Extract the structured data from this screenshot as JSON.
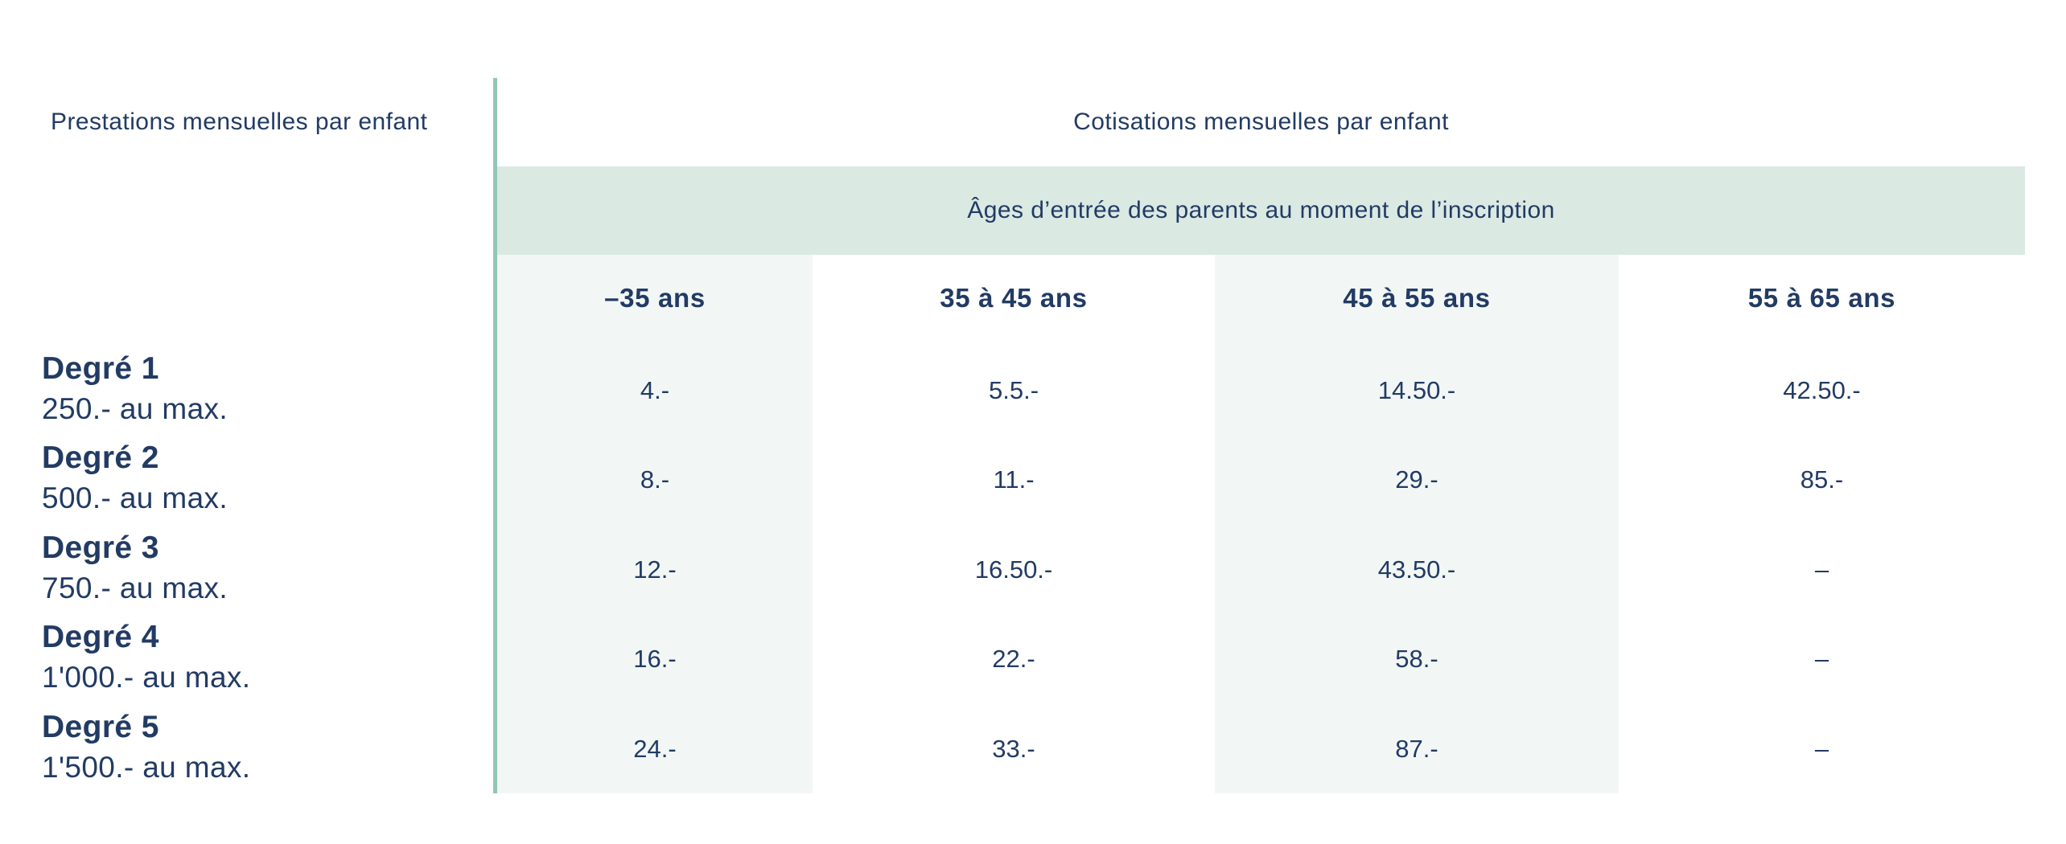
{
  "styles": {
    "page_bg": "#ffffff",
    "text_navy": "#223b64",
    "band_bg": "#dbe9e3",
    "column_tint_bg": "#f2f7f5",
    "divider_teal": "#92c5b8"
  },
  "chart_data": {
    "type": "table",
    "left_title": "Prestations mensuelles par enfant",
    "right_title": "Cotisations mensuelles par enfant",
    "age_header": "Âges d’entrée des parents au moment de l’inscription",
    "columns": [
      "–35 ans",
      "35 à 45 ans",
      "45 à 55 ans",
      "55 à 65 ans"
    ],
    "rows": [
      {
        "label": "Degré 1",
        "max": "250.- au max.",
        "values": [
          "4.-",
          "5.5.-",
          "14.50.-",
          "42.50.-"
        ]
      },
      {
        "label": "Degré 2",
        "max": "500.- au max.",
        "values": [
          "8.-",
          "11.-",
          "29.-",
          "85.-"
        ]
      },
      {
        "label": "Degré 3",
        "max": "750.- au max.",
        "values": [
          "12.-",
          "16.50.-",
          "43.50.-",
          "–"
        ]
      },
      {
        "label": "Degré 4",
        "max": "1'000.- au max.",
        "values": [
          "16.-",
          "22.-",
          "58.-",
          "–"
        ]
      },
      {
        "label": "Degré 5",
        "max": "1'500.- au max.",
        "values": [
          "24.-",
          "33.-",
          "87.-",
          "–"
        ]
      }
    ]
  }
}
